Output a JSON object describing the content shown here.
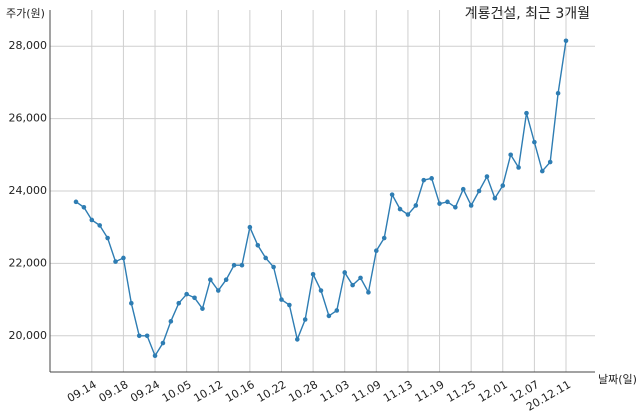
{
  "chart_data": {
    "type": "line",
    "title": "계룡건설, 최근 3개월",
    "y_label": "주가(원)",
    "x_label": "날짜(일)",
    "categories": [
      null,
      null,
      "09.14",
      null,
      null,
      null,
      "09.18",
      null,
      null,
      null,
      "09.24",
      null,
      null,
      null,
      "10.05",
      null,
      null,
      null,
      "10.12",
      null,
      null,
      null,
      "10.16",
      null,
      null,
      null,
      "10.22",
      null,
      null,
      null,
      "10.28",
      null,
      null,
      null,
      "11.03",
      null,
      null,
      null,
      "11.09",
      null,
      null,
      null,
      "11.13",
      null,
      null,
      null,
      "11.19",
      null,
      null,
      null,
      "11.25",
      null,
      null,
      null,
      "12.01",
      null,
      null,
      null,
      "12.07",
      null,
      null,
      null,
      "20.12.11"
    ],
    "series": [
      {
        "name": "계룡건설",
        "color": "#2e7db3",
        "values": [
          23700,
          23550,
          23200,
          23050,
          22700,
          22050,
          22150,
          20900,
          20000,
          20000,
          19450,
          19800,
          20400,
          20900,
          21150,
          21050,
          20750,
          21550,
          21250,
          21550,
          21950,
          21950,
          23000,
          22500,
          22150,
          21900,
          21000,
          20850,
          19900,
          20450,
          21700,
          21250,
          20550,
          20700,
          21750,
          21400,
          21600,
          21200,
          22350,
          22700,
          23900,
          23500,
          23350,
          23600,
          24300,
          24350,
          23650,
          23700,
          23550,
          24050,
          23600,
          24000,
          24400,
          23800,
          24150,
          25000,
          24650,
          26150,
          25350,
          24550,
          24800,
          26700,
          28150
        ]
      }
    ],
    "ylim": [
      19000,
      29000
    ],
    "yticks": [
      {
        "value": 20000,
        "label": "20,000"
      },
      {
        "value": 22000,
        "label": "22,000"
      },
      {
        "value": 24000,
        "label": "24,000"
      },
      {
        "value": 26000,
        "label": "26,000"
      },
      {
        "value": 28000,
        "label": "28,000"
      }
    ],
    "grid": true
  }
}
